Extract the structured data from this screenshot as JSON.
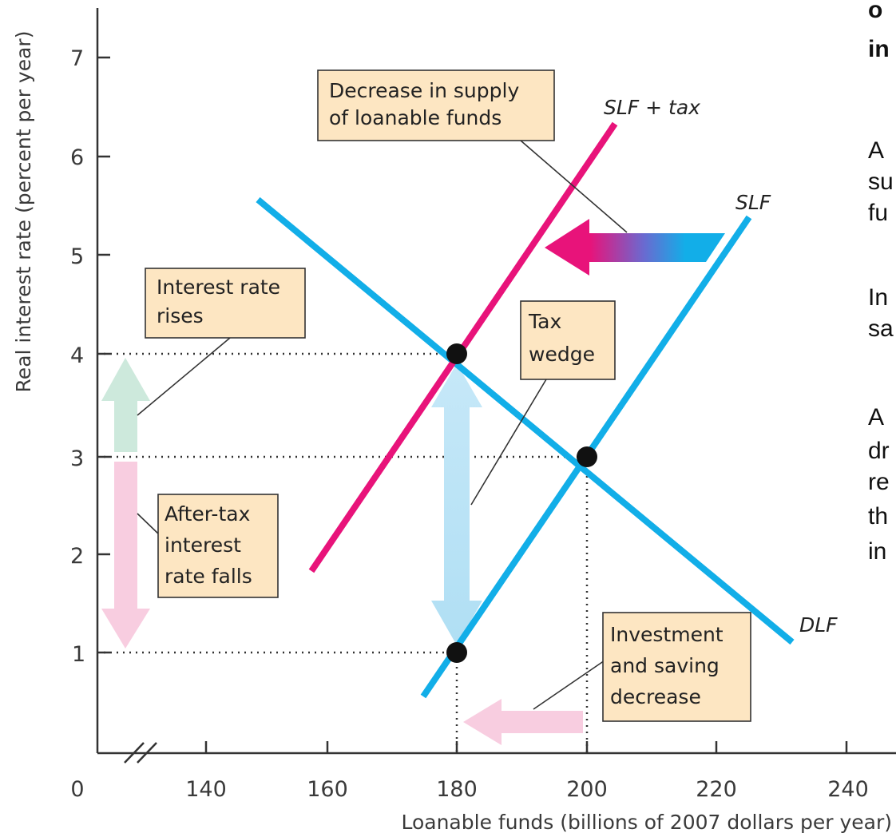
{
  "chart_data": {
    "type": "line",
    "xlabel": "Loanable funds (billions of 2007 dollars per year)",
    "ylabel": "Real interest rate (percent per year)",
    "xlim": [
      130,
      240
    ],
    "ylim": [
      0,
      7.5
    ],
    "x_ticks": [
      "0",
      "140",
      "160",
      "180",
      "200",
      "220",
      "240"
    ],
    "y_ticks": [
      "1",
      "2",
      "3",
      "4",
      "5",
      "6",
      "7"
    ],
    "series": [
      {
        "name": "SLF",
        "color": "#12aee8",
        "points": [
          [
            174,
            0.4
          ],
          [
            224.5,
            5.35
          ]
        ]
      },
      {
        "name": "SLF + tax",
        "color": "#e8137a",
        "points": [
          [
            157,
            1.83
          ],
          [
            204,
            6.3
          ]
        ]
      },
      {
        "name": "DLF",
        "color": "#12aee8",
        "points": [
          [
            149,
            5.55
          ],
          [
            231,
            1.33
          ]
        ]
      }
    ],
    "points": [
      {
        "x": 180,
        "y": 4,
        "label": "tax-equilibrium-point"
      },
      {
        "x": 200,
        "y": 3,
        "label": "initial-equilibrium-point"
      },
      {
        "x": 180,
        "y": 1,
        "label": "after-tax-rate-point"
      }
    ],
    "reference_lines": [
      {
        "y": 4,
        "x_end": 180
      },
      {
        "y": 3,
        "x_end": 200
      },
      {
        "y": 1,
        "x_end": 180
      },
      {
        "x": 180,
        "y_end": 4
      },
      {
        "x": 200,
        "y_end": 3
      }
    ],
    "annotations": [
      {
        "id": "supply-decrease",
        "lines": [
          "Decrease in supply",
          "of loanable funds"
        ]
      },
      {
        "id": "rate-rises",
        "lines": [
          "Interest rate",
          "rises"
        ]
      },
      {
        "id": "tax-wedge",
        "lines": [
          "Tax",
          "wedge"
        ]
      },
      {
        "id": "after-tax",
        "lines": [
          "After-tax",
          "interest",
          "rate falls"
        ]
      },
      {
        "id": "invest-decrease",
        "lines": [
          "Investment",
          "and saving",
          "decrease"
        ]
      }
    ],
    "curve_labels": {
      "slf_tax": "SLF + tax",
      "slf": "SLF",
      "dlf": "DLF"
    },
    "colors": {
      "supply": "#12aee8",
      "taxed_supply": "#e8137a",
      "box_fill": "#fde6c2",
      "green_arrow": "#cde9dc",
      "pink_arrow": "#f8cde0",
      "light_blue_arrow": "#c6e8f8"
    }
  },
  "side_text": {
    "title_line1": "o",
    "title_line2": "in",
    "para1": [
      "A",
      "su",
      "fu"
    ],
    "para2": [
      "In",
      "sa"
    ],
    "para3": [
      "A",
      "dr",
      "re",
      "th",
      "in"
    ]
  }
}
